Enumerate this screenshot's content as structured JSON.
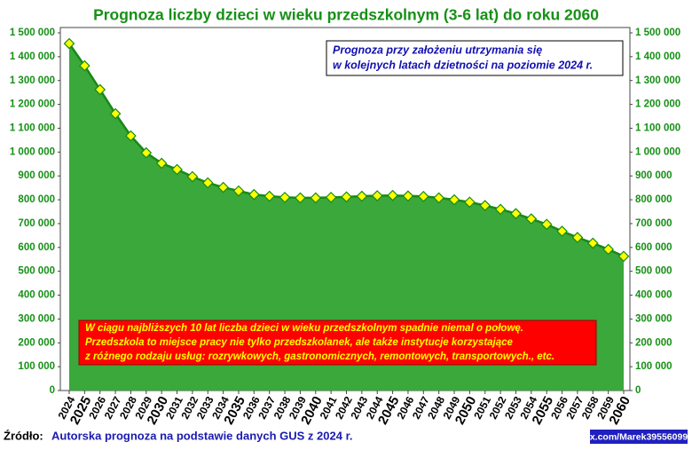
{
  "chart_data": {
    "type": "area",
    "title": "Prognoza liczby dzieci w wieku przedszkolnym (3-6 lat) do roku 2060",
    "note_box": [
      "Prognoza przy założeniu utrzymania się",
      "w kolejnych latach dzietności na poziomie 2024 r."
    ],
    "highlight_box": [
      "W ciągu najbliższych 10 lat liczba dzieci w wieku przedszkolnym spadnie niemal o połowę.",
      "Przedszkola to miejsce pracy nie tylko przedszkolanek, ale także instytucje korzystające",
      "z różnego rodzaju usług: rozrywkowych, gastronomicznych, remontowych, transportowych., etc."
    ],
    "source_label": "Źródło:",
    "source": "Autorska prognoza na podstawie danych GUS z 2024 r.",
    "watermark": "x.com/Marek39556099",
    "categories": [
      "2024",
      "2025",
      "2026",
      "2027",
      "2028",
      "2029",
      "2030",
      "2031",
      "2032",
      "2033",
      "2034",
      "2035",
      "2036",
      "2037",
      "2038",
      "2039",
      "2040",
      "2041",
      "2042",
      "2043",
      "2044",
      "2045",
      "2046",
      "2047",
      "2048",
      "2049",
      "2050",
      "2051",
      "2052",
      "2053",
      "2054",
      "2055",
      "2056",
      "2057",
      "2058",
      "2059",
      "2060"
    ],
    "values": [
      1455000,
      1362000,
      1262000,
      1161000,
      1068000,
      997000,
      953000,
      927000,
      897000,
      871000,
      852000,
      837000,
      822000,
      815000,
      810000,
      808000,
      808000,
      810000,
      812000,
      815000,
      817000,
      818000,
      816000,
      814000,
      808000,
      800000,
      790000,
      776000,
      760000,
      742000,
      720000,
      697000,
      668000,
      642000,
      618000,
      592000,
      563000
    ],
    "color": "#3aa83a",
    "line_color": "#168a16",
    "marker_color": "#ffff00",
    "ylim": [
      0,
      1500000
    ],
    "yticks": [
      0,
      {
        "value": 100000,
        "label": "100 000"
      },
      {
        "value": 200000,
        "label": "200 000"
      },
      {
        "value": 300000,
        "label": "300 000"
      },
      {
        "value": 400000,
        "label": "400 000"
      },
      {
        "value": 500000,
        "label": "500 000"
      },
      {
        "value": 600000,
        "label": "600 000"
      },
      {
        "value": 700000,
        "label": "700 000"
      },
      {
        "value": 800000,
        "label": "800 000"
      },
      {
        "value": 900000,
        "label": "900 000"
      },
      {
        "value": 1000000,
        "label": "1 000 000"
      },
      {
        "value": 1100000,
        "label": "1 100 000"
      },
      {
        "value": 1200000,
        "label": "1 200 000"
      },
      {
        "value": 1300000,
        "label": "1 300 000"
      },
      {
        "value": 1400000,
        "label": "1 400 000"
      },
      {
        "value": 1500000,
        "label": "1 500 000"
      }
    ],
    "y2lim": [
      0,
      1500000
    ],
    "y2ticks": [
      0,
      {
        "value": 100000,
        "label": "100 000"
      },
      {
        "value": 200000,
        "label": "200 000"
      },
      {
        "value": 300000,
        "label": "300 000"
      },
      {
        "value": 400000,
        "label": "400 000"
      },
      {
        "value": 500000,
        "label": "500 000"
      },
      {
        "value": 600000,
        "label": "600 000"
      },
      {
        "value": 700000,
        "label": "700 000"
      },
      {
        "value": 800000,
        "label": "800 000"
      },
      {
        "value": 900000,
        "label": "900 000"
      },
      {
        "value": 1000000,
        "label": "1 000 000"
      },
      {
        "value": 1100000,
        "label": "1 100 000"
      },
      {
        "value": 1200000,
        "label": "1 200 000"
      },
      {
        "value": 1300000,
        "label": "1 300 000"
      },
      {
        "value": 1400000,
        "label": "1 400 000"
      },
      {
        "value": 1500000,
        "label": "1 500 000"
      }
    ],
    "grid": false
  }
}
